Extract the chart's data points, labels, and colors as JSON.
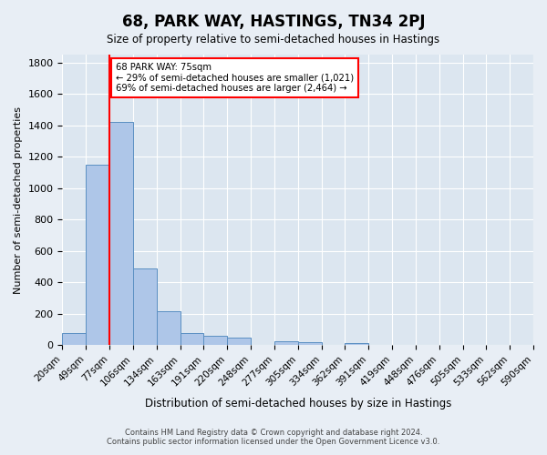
{
  "title": "68, PARK WAY, HASTINGS, TN34 2PJ",
  "subtitle": "Size of property relative to semi-detached houses in Hastings",
  "xlabel": "Distribution of semi-detached houses by size in Hastings",
  "ylabel": "Number of semi-detached properties",
  "bin_labels": [
    "20sqm",
    "49sqm",
    "77sqm",
    "106sqm",
    "134sqm",
    "163sqm",
    "191sqm",
    "220sqm",
    "248sqm",
    "277sqm",
    "305sqm",
    "334sqm",
    "362sqm",
    "391sqm",
    "419sqm",
    "448sqm",
    "476sqm",
    "505sqm",
    "533sqm",
    "562sqm",
    "590sqm"
  ],
  "bar_values": [
    75,
    1150,
    1420,
    490,
    215,
    80,
    60,
    50,
    0,
    25,
    20,
    0,
    15,
    0,
    0,
    0,
    0,
    0,
    0,
    0
  ],
  "bar_color": "#aec6e8",
  "bar_edge_color": "#5a8fc2",
  "property_line_color": "red",
  "annotation_title": "68 PARK WAY: 75sqm",
  "annotation_line1": "← 29% of semi-detached houses are smaller (1,021)",
  "annotation_line2": "69% of semi-detached houses are larger (2,464) →",
  "annotation_box_color": "white",
  "annotation_box_edge_color": "red",
  "ylim": [
    0,
    1850
  ],
  "yticks": [
    0,
    200,
    400,
    600,
    800,
    1000,
    1200,
    1400,
    1600,
    1800
  ],
  "footer_line1": "Contains HM Land Registry data © Crown copyright and database right 2024.",
  "footer_line2": "Contains public sector information licensed under the Open Government Licence v3.0.",
  "bg_color": "#e8eef5",
  "plot_bg_color": "#dce6f0"
}
